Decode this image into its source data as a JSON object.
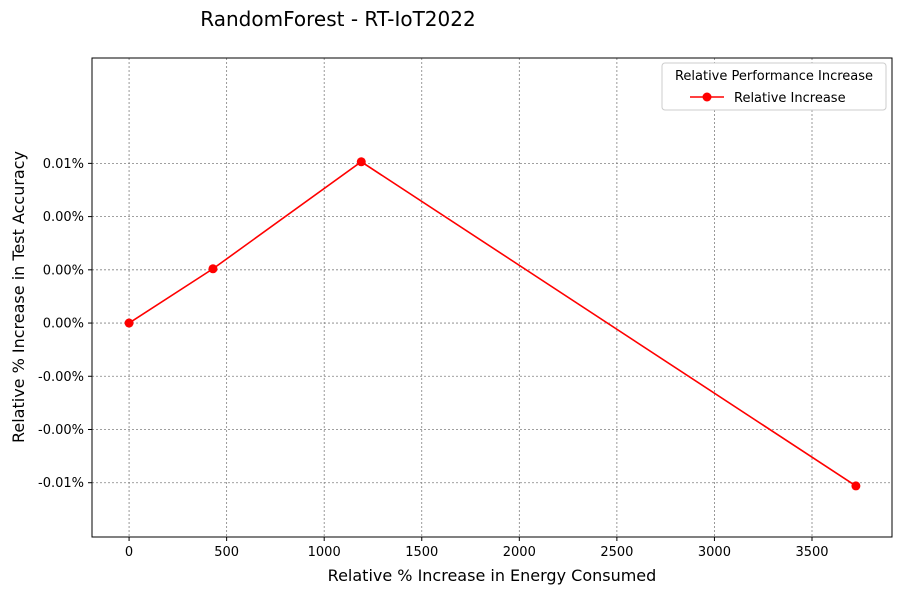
{
  "chart_data": {
    "type": "line",
    "title": "RandomForest - RT-IoT2022",
    "xlabel": "Relative % Increase in Energy Consumed",
    "ylabel": "Relative % Increase in Test Accuracy",
    "xlim": [
      -190,
      3910
    ],
    "ylim": [
      -0.0134,
      0.0166
    ],
    "xticks": [
      0,
      500,
      1000,
      1500,
      2000,
      2500,
      3000,
      3500
    ],
    "xtick_labels": [
      "0",
      "500",
      "1000",
      "1500",
      "2000",
      "2500",
      "3000",
      "3500"
    ],
    "yticks": [
      -0.01,
      -0.0066667,
      -0.0033333,
      0.0,
      0.0033333,
      0.0066667,
      0.01
    ],
    "ytick_labels": [
      "-0.01%",
      "-0.00%",
      "-0.00%",
      "0.00%",
      "0.00%",
      "0.00%",
      "0.01%"
    ],
    "grid": true,
    "legend": {
      "title": "Relative Performance Increase",
      "placement": "top-right",
      "entries": [
        "Relative Increase"
      ]
    },
    "series": [
      {
        "name": "Relative Increase",
        "color": "#ff0000",
        "marker": "circle",
        "x": [
          0,
          430,
          1190,
          3725
        ],
        "y": [
          0.0,
          0.0034,
          0.0101,
          -0.0102
        ]
      }
    ]
  }
}
